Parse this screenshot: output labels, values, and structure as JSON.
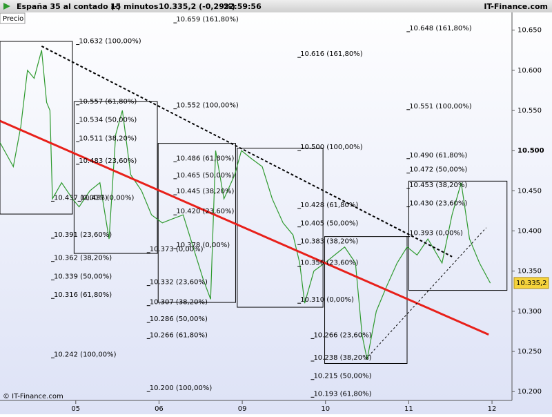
{
  "chart_data": {
    "type": "line",
    "header": {
      "instrument": "España 35 al contado (-)",
      "interval": "15 minutos",
      "quote": "10.335,2 (-0,29%)",
      "time": "22:59:56",
      "site": "IT-Finance.com"
    },
    "ylabel": "Precio",
    "footer": "© IT-Finance.com",
    "xlim": [
      4.09,
      10.24
    ],
    "xticks": [
      {
        "value": 5,
        "label": "05"
      },
      {
        "value": 6,
        "label": "06"
      },
      {
        "value": 7,
        "label": "09"
      },
      {
        "value": 8,
        "label": "10"
      },
      {
        "value": 9,
        "label": "11"
      },
      {
        "value": 10,
        "label": "12"
      }
    ],
    "ylim": [
      10.189,
      10.672
    ],
    "yticks": [
      {
        "value": 10.2,
        "label": "10.200"
      },
      {
        "value": 10.25,
        "label": "10.250"
      },
      {
        "value": 10.3,
        "label": "10.300"
      },
      {
        "value": 10.35,
        "label": "10.350"
      },
      {
        "value": 10.4,
        "label": "10.400"
      },
      {
        "value": 10.45,
        "label": "10.450"
      },
      {
        "value": 10.5,
        "label": "10.500"
      },
      {
        "value": 10.55,
        "label": "10.550"
      },
      {
        "value": 10.6,
        "label": "10.600"
      },
      {
        "value": 10.65,
        "label": "10.650"
      }
    ],
    "bold_ytick": 10.5,
    "last_price": {
      "value": 10.3352,
      "label": "10.335,2"
    },
    "series": [
      {
        "color": "#2e9a2e",
        "x": [
          4.09,
          4.25,
          4.34,
          4.42,
          4.5,
          4.59,
          4.65,
          4.69,
          4.72,
          4.83,
          4.96,
          5.04,
          5.17,
          5.29,
          5.4,
          5.48,
          5.56,
          5.66,
          5.79,
          5.91,
          6.04,
          6.16,
          6.29,
          6.41,
          6.53,
          6.62,
          6.68,
          6.78,
          6.91,
          6.99,
          7.11,
          7.24,
          7.36,
          7.49,
          7.61,
          7.69,
          7.75,
          7.86,
          7.99,
          8.11,
          8.23,
          8.36,
          8.44,
          8.5,
          8.61,
          8.73,
          8.86,
          8.98,
          9.1,
          9.23,
          9.4,
          9.52,
          9.63,
          9.73,
          9.85,
          9.98
        ],
        "values": [
          10.51,
          10.48,
          10.53,
          10.6,
          10.59,
          10.625,
          10.56,
          10.55,
          10.44,
          10.46,
          10.44,
          10.43,
          10.45,
          10.46,
          10.39,
          10.52,
          10.55,
          10.47,
          10.45,
          10.42,
          10.41,
          10.415,
          10.42,
          10.38,
          10.34,
          10.315,
          10.5,
          10.44,
          10.47,
          10.5,
          10.49,
          10.48,
          10.44,
          10.41,
          10.395,
          10.36,
          10.31,
          10.35,
          10.36,
          10.37,
          10.38,
          10.36,
          10.27,
          10.24,
          10.3,
          10.33,
          10.36,
          10.38,
          10.37,
          10.39,
          10.36,
          10.42,
          10.46,
          10.39,
          10.36,
          10.335
        ]
      }
    ],
    "trendlines": [
      {
        "color": "#e8201a",
        "style": "solid",
        "x": [
          4.09,
          9.96
        ],
        "y": [
          10.537,
          10.271
        ]
      },
      {
        "color": "#000000",
        "style": "dashed",
        "x": [
          4.59,
          9.52
        ],
        "y": [
          10.63,
          10.368
        ]
      },
      {
        "color": "#000000",
        "style": "dotted",
        "x": [
          8.48,
          9.93
        ],
        "y": [
          10.24,
          10.404
        ]
      }
    ],
    "fib_boxes": [
      {
        "x": [
          4.09,
          4.96
        ],
        "y": [
          10.421,
          10.636
        ]
      },
      {
        "x": [
          4.98,
          5.98
        ],
        "y": [
          10.372,
          10.561
        ]
      },
      {
        "x": [
          5.99,
          6.92
        ],
        "y": [
          10.311,
          10.509
        ]
      },
      {
        "x": [
          6.94,
          7.97
        ],
        "y": [
          10.305,
          10.503
        ]
      },
      {
        "x": [
          7.99,
          8.98
        ],
        "y": [
          10.235,
          10.393
        ]
      },
      {
        "x": [
          9.0,
          10.18
        ],
        "y": [
          10.326,
          10.462
        ]
      }
    ],
    "fib_labels": [
      {
        "day": 5.02,
        "price": 10.632,
        "label": "10.632 (100,00%)"
      },
      {
        "day": 5.02,
        "price": 10.557,
        "label": "10.557 (61,80%)"
      },
      {
        "day": 5.02,
        "price": 10.534,
        "label": "10.534 (50,00%)"
      },
      {
        "day": 5.02,
        "price": 10.511,
        "label": "10.511 (38,20%)"
      },
      {
        "day": 5.02,
        "price": 10.483,
        "label": "10.483 (23,60%)"
      },
      {
        "day": 5.04,
        "price": 10.437,
        "label": "10.437 (0,00%)"
      },
      {
        "day": 4.72,
        "price": 10.437,
        "label": "10.437 (0,00%)"
      },
      {
        "day": 4.72,
        "price": 10.391,
        "label": "10.391 (23,60%)"
      },
      {
        "day": 4.72,
        "price": 10.362,
        "label": "10.362 (38,20%)"
      },
      {
        "day": 4.72,
        "price": 10.339,
        "label": "10.339 (50,00%)"
      },
      {
        "day": 4.72,
        "price": 10.316,
        "label": "10.316 (61,80%)"
      },
      {
        "day": 4.72,
        "price": 10.242,
        "label": "10.242 (100,00%)"
      },
      {
        "day": 6.19,
        "price": 10.659,
        "label": "10.659 (161,80%)"
      },
      {
        "day": 6.19,
        "price": 10.552,
        "label": "10.552 (100,00%)"
      },
      {
        "day": 6.19,
        "price": 10.486,
        "label": "10.486 (61,80%)"
      },
      {
        "day": 6.19,
        "price": 10.465,
        "label": "10.465 (50,00%)"
      },
      {
        "day": 6.19,
        "price": 10.445,
        "label": "10.445 (38,20%)"
      },
      {
        "day": 6.19,
        "price": 10.42,
        "label": "10.420 (23,60%)"
      },
      {
        "day": 6.19,
        "price": 10.378,
        "label": "10.378 (0,00%)"
      },
      {
        "day": 5.87,
        "price": 10.373,
        "label": "10.373 (0,00%)"
      },
      {
        "day": 5.87,
        "price": 10.332,
        "label": "10.332 (23,60%)"
      },
      {
        "day": 5.87,
        "price": 10.307,
        "label": "10.307 (38,20%)"
      },
      {
        "day": 5.87,
        "price": 10.286,
        "label": "10.286 (50,00%)"
      },
      {
        "day": 5.87,
        "price": 10.266,
        "label": "10.266 (61,80%)"
      },
      {
        "day": 5.87,
        "price": 10.2,
        "label": "10.200 (100,00%)"
      },
      {
        "day": 7.68,
        "price": 10.616,
        "label": "10.616 (161,80%)"
      },
      {
        "day": 7.68,
        "price": 10.5,
        "label": "10.500 (100,00%)"
      },
      {
        "day": 7.68,
        "price": 10.428,
        "label": "10.428 (61,80%)"
      },
      {
        "day": 7.68,
        "price": 10.405,
        "label": "10.405 (50,00%)"
      },
      {
        "day": 7.68,
        "price": 10.383,
        "label": "10.383 (38,20%)"
      },
      {
        "day": 7.68,
        "price": 10.356,
        "label": "10.356 (23,60%)"
      },
      {
        "day": 7.68,
        "price": 10.31,
        "label": "10.310 (0,00%)"
      },
      {
        "day": 7.84,
        "price": 10.266,
        "label": "10.266 (23,60%)"
      },
      {
        "day": 7.84,
        "price": 10.238,
        "label": "10.238 (38,20%)"
      },
      {
        "day": 7.84,
        "price": 10.215,
        "label": "10.215 (50,00%)"
      },
      {
        "day": 7.84,
        "price": 10.193,
        "label": "10.193 (61,80%)"
      },
      {
        "day": 8.99,
        "price": 10.648,
        "label": "10.648 (161,80%)"
      },
      {
        "day": 8.99,
        "price": 10.551,
        "label": "10.551 (100,00%)"
      },
      {
        "day": 8.99,
        "price": 10.49,
        "label": "10.490 (61,80%)"
      },
      {
        "day": 8.99,
        "price": 10.472,
        "label": "10.472 (50,00%)"
      },
      {
        "day": 8.99,
        "price": 10.453,
        "label": "10.453 (38,20%)"
      },
      {
        "day": 8.99,
        "price": 10.43,
        "label": "10.430 (23,60%)"
      },
      {
        "day": 8.99,
        "price": 10.393,
        "label": "10.393 (0,00%)"
      }
    ]
  }
}
